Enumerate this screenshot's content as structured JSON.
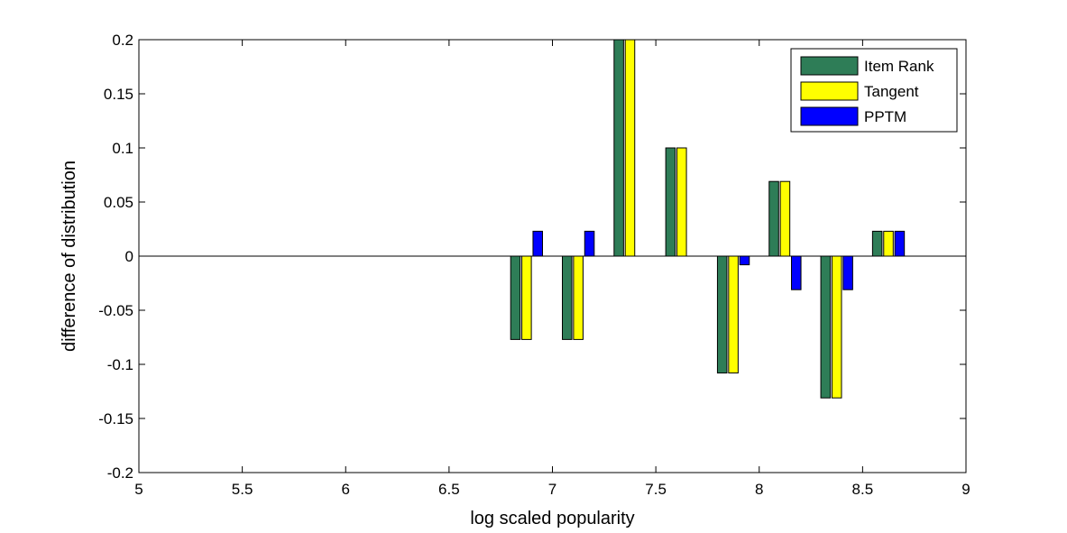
{
  "chart_data": {
    "type": "bar",
    "title": "",
    "xlabel": "log scaled popularity",
    "ylabel": "difference of distribution",
    "xlim": [
      5,
      9
    ],
    "ylim": [
      -0.2,
      0.2
    ],
    "xticks": [
      5,
      5.5,
      6,
      6.5,
      7,
      7.5,
      8,
      8.5,
      9
    ],
    "xtick_labels": [
      "5",
      "5.5",
      "6",
      "6.5",
      "7",
      "7.5",
      "8",
      "8.5",
      "9"
    ],
    "yticks": [
      -0.2,
      -0.15,
      -0.1,
      -0.05,
      0,
      0.05,
      0.1,
      0.15,
      0.2
    ],
    "ytick_labels": [
      "-0.2",
      "-0.15",
      "-0.1",
      "-0.05",
      "0",
      "0.05",
      "0.1",
      "0.15",
      "0.2"
    ],
    "x": [
      6.875,
      7.125,
      7.375,
      7.625,
      7.875,
      8.125,
      8.375,
      8.625
    ],
    "series": [
      {
        "name": "Item Rank",
        "color": "#2e7d57",
        "values": [
          -0.077,
          -0.077,
          0.2,
          0.1,
          -0.108,
          0.069,
          -0.131,
          0.023
        ]
      },
      {
        "name": "Tangent",
        "color": "#ffff00",
        "values": [
          -0.077,
          -0.077,
          0.2,
          0.1,
          -0.108,
          0.069,
          -0.131,
          0.023
        ]
      },
      {
        "name": "PPTM",
        "color": "#0000ff",
        "values": [
          0.023,
          0.023,
          0,
          0,
          -0.008,
          -0.031,
          -0.031,
          0.023
        ]
      }
    ],
    "legend_position": "top-right",
    "grid": false
  }
}
